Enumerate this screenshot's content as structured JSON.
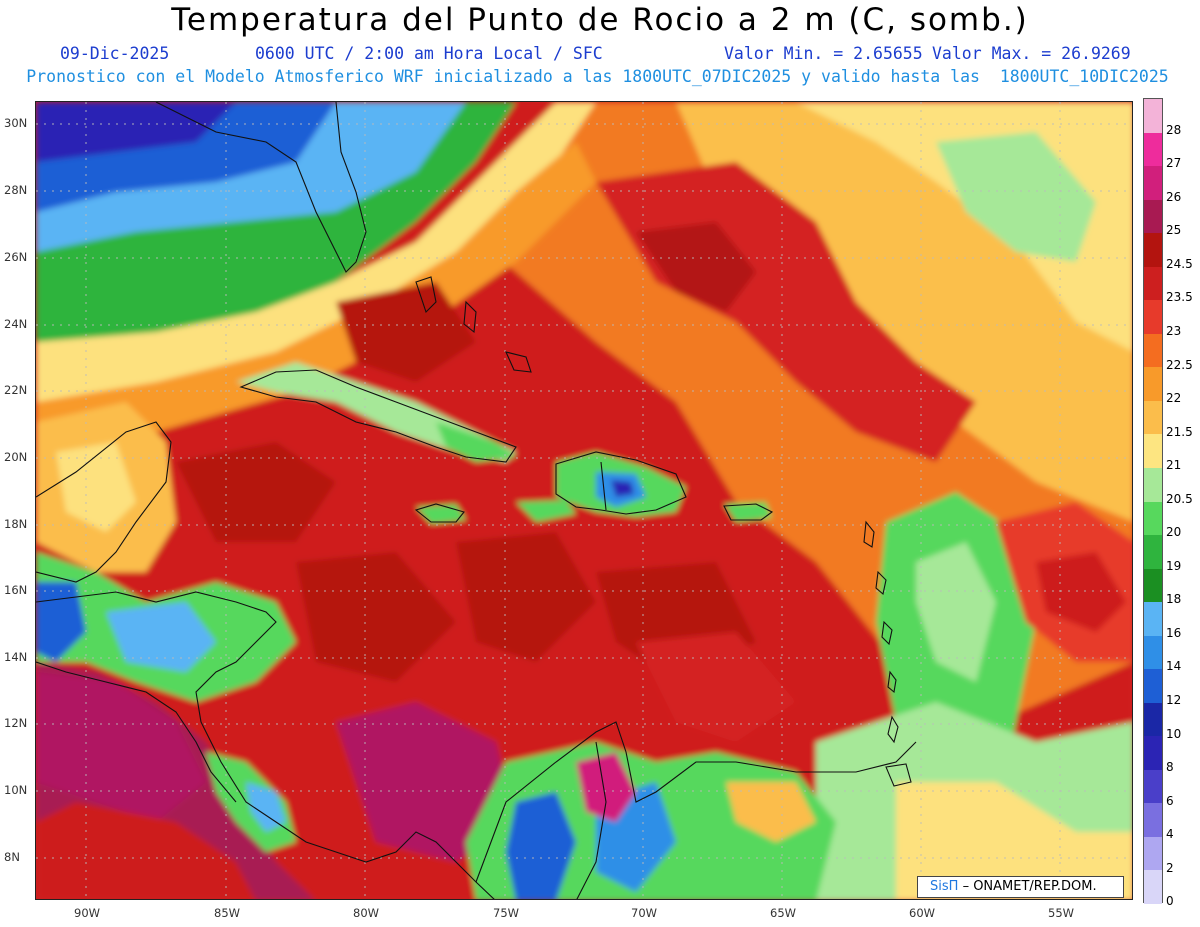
{
  "header": {
    "title": "Temperatura del Punto de Rocio a 2 m (C, somb.)",
    "date": "09-Dic-2025",
    "time": "0600 UTC / 2:00 am Hora Local / SFC",
    "min": "Valor Min. = 2.65655",
    "max": "Valor Max. = 26.9269",
    "forecast": "Pronostico con el Modelo Atmosferico WRF inicializado a las 1800UTC_07DIC2025 y valido hasta las  1800UTC_10DIC2025"
  },
  "map": {
    "lat_labels": [
      "30N",
      "28N",
      "26N",
      "24N",
      "22N",
      "20N",
      "18N",
      "16N",
      "14N",
      "12N",
      "10N",
      "8N"
    ],
    "lon_labels": [
      "90W",
      "85W",
      "80W",
      "75W",
      "70W",
      "65W",
      "60W",
      "55W"
    ]
  },
  "colorbar": {
    "levels": [
      "28",
      "27",
      "26",
      "25",
      "24.5",
      "23.5",
      "23",
      "22.5",
      "22",
      "21.5",
      "21",
      "20.5",
      "20",
      "19",
      "18",
      "16",
      "14",
      "12",
      "10",
      "8",
      "6",
      "4",
      "2",
      "0"
    ],
    "colors": [
      "#f3b3d8",
      "#ee2c9c",
      "#d11f7c",
      "#a81a52",
      "#b3140f",
      "#cd1f1f",
      "#e73a2b",
      "#f46d20",
      "#f89a2a",
      "#fbbd4b",
      "#fde581",
      "#a6e898",
      "#57d85d",
      "#2fb43e",
      "#1b8f22",
      "#5ab4f4",
      "#2f8fe7",
      "#1e5fd5",
      "#1a27a6",
      "#2b24b4",
      "#4a3fc9",
      "#7a6fe0",
      "#aea7f1",
      "#d9d6f8"
    ]
  },
  "credit": {
    "logo": "SisΠ",
    "text": "ONAMET/REP.DOM."
  }
}
